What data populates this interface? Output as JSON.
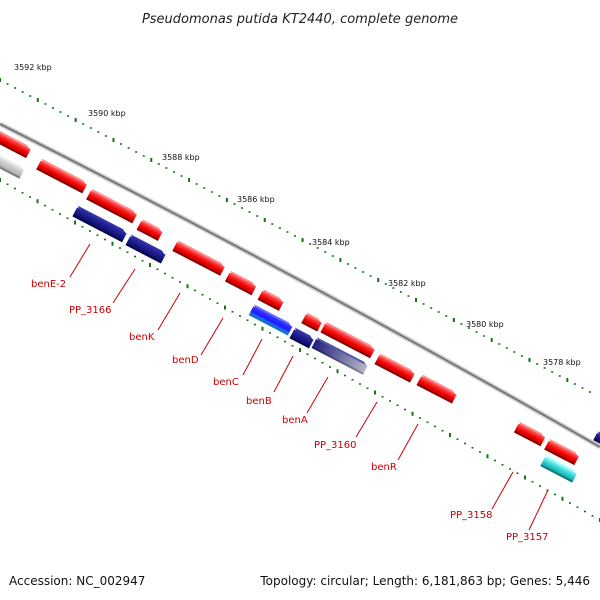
{
  "title": "Pseudomonas putida KT2440, complete genome",
  "footer": {
    "accession": "Accession: NC_002947",
    "summary": "Topology: circular; Length: 6,181,863 bp; Genes: 5,446"
  },
  "kbp_labels": [
    "3592 kbp",
    "3590 kbp",
    "3588 kbp",
    "3586 kbp",
    "3584 kbp",
    "3582 kbp",
    "3580 kbp",
    "3578 kbp"
  ],
  "gene_labels": [
    "benE-2",
    "PP_3166",
    "benK",
    "benD",
    "benC",
    "benB",
    "benA",
    "PP_3160",
    "benR",
    "PP_3158",
    "PP_3157"
  ],
  "colors": {
    "forward_gene": "#ee0000",
    "reverse_gene": "#0a0a7a",
    "highlight_blue": "#1a1aff",
    "highlight_cyan": "#22cccc",
    "genome_line": "#888888",
    "tick": "#117711",
    "label": "#cc0000"
  }
}
